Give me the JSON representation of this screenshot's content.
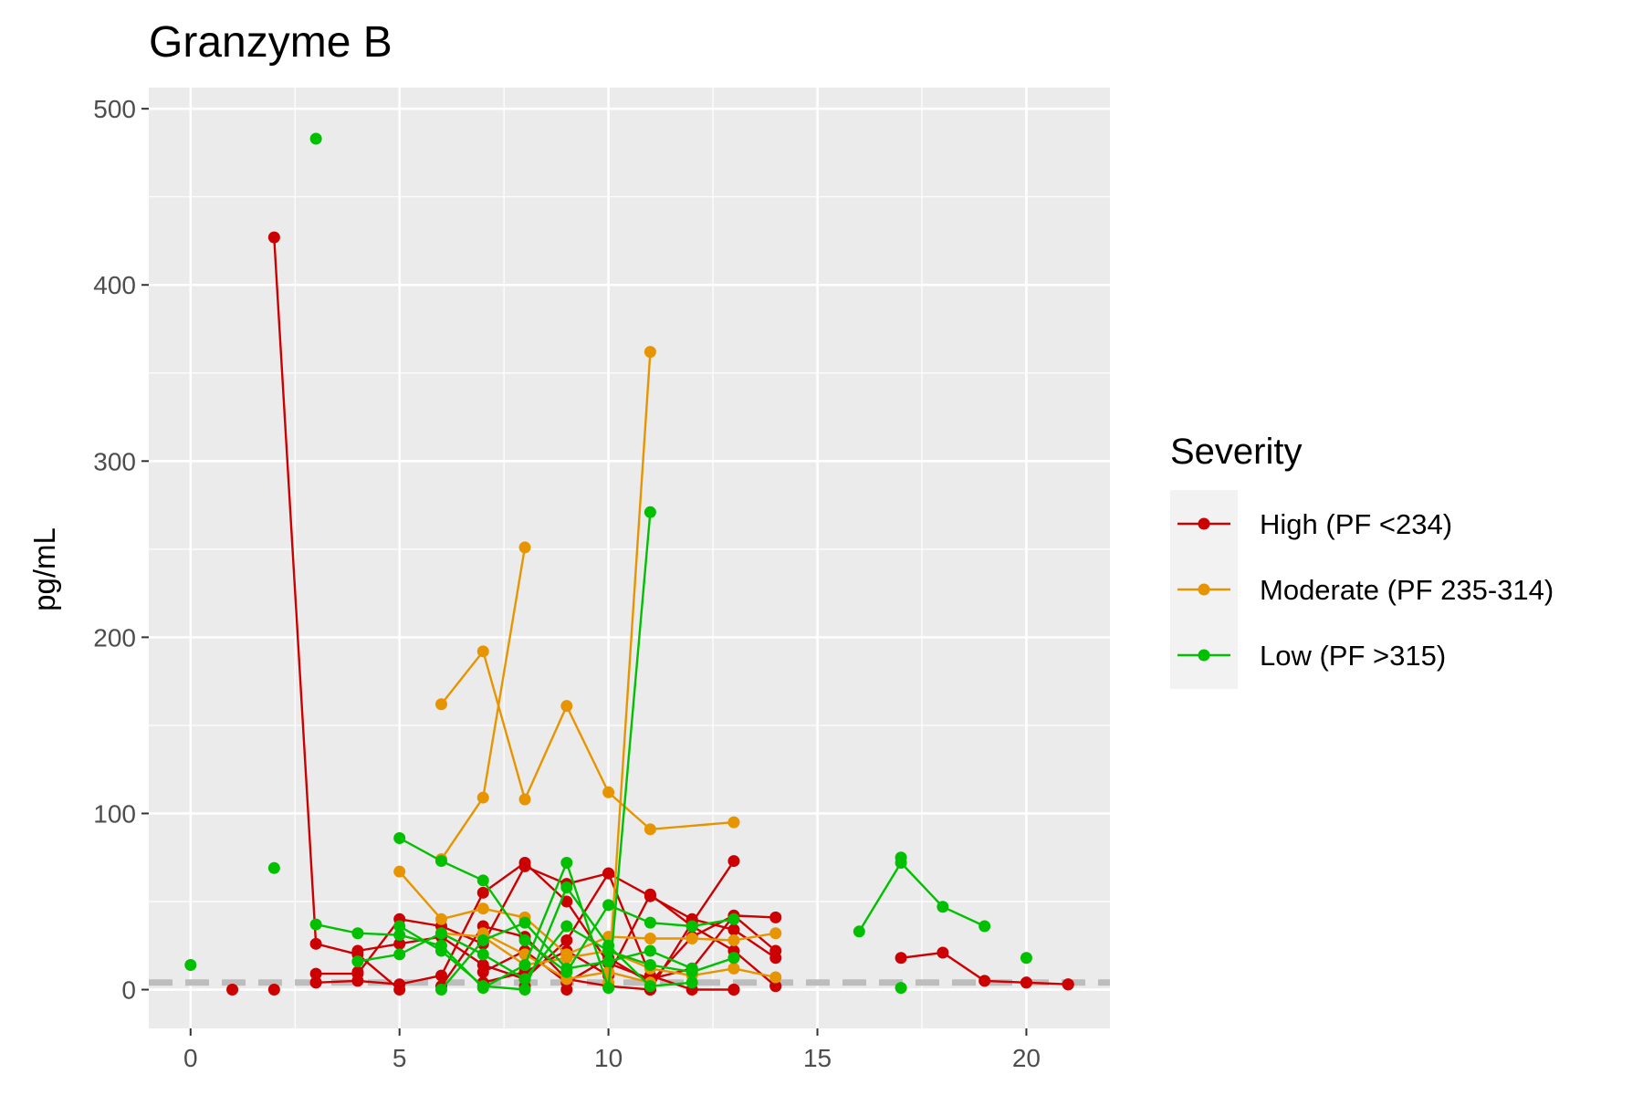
{
  "chart_data": {
    "type": "line",
    "title": "Granzyme B",
    "xlabel": "",
    "ylabel": "pg/mL",
    "xlim": [
      -1,
      22
    ],
    "ylim": [
      -22,
      512
    ],
    "x_ticks": [
      0,
      5,
      10,
      15,
      20
    ],
    "y_ticks": [
      0,
      100,
      200,
      300,
      400,
      500
    ],
    "grid": true,
    "reference_line": {
      "y": 4,
      "style": "dashed",
      "color": "#bdbdbd"
    },
    "legend": {
      "title": "Severity",
      "position": "right"
    },
    "series": [
      {
        "name": "High (PF <234)",
        "color": "#cc0000",
        "trajectories": [
          [
            [
              2,
              427
            ],
            [
              3,
              26
            ],
            [
              4,
              20
            ],
            [
              5,
              0
            ]
          ],
          [
            [
              3,
              9
            ],
            [
              4,
              9
            ],
            [
              5,
              40
            ],
            [
              6,
              36
            ],
            [
              7,
              26
            ],
            [
              8,
              70
            ],
            [
              9,
              60
            ],
            [
              10,
              66
            ],
            [
              11,
              53
            ],
            [
              12,
              40
            ],
            [
              13,
              34
            ],
            [
              14,
              18
            ]
          ],
          [
            [
              3,
              4
            ],
            [
              4,
              5
            ],
            [
              5,
              3
            ],
            [
              6,
              8
            ],
            [
              7,
              55
            ],
            [
              8,
              72
            ],
            [
              9,
              50
            ],
            [
              10,
              15
            ],
            [
              11,
              6
            ],
            [
              12,
              12
            ],
            [
              13,
              42
            ],
            [
              14,
              22
            ]
          ],
          [
            [
              4,
              22
            ],
            [
              5,
              26
            ],
            [
              6,
              30
            ],
            [
              7,
              14
            ],
            [
              8,
              6
            ],
            [
              9,
              28
            ],
            [
              10,
              66
            ],
            [
              11,
              8
            ],
            [
              12,
              0
            ],
            [
              13,
              0
            ]
          ],
          [
            [
              6,
              2
            ],
            [
              7,
              36
            ],
            [
              8,
              30
            ],
            [
              9,
              6
            ],
            [
              10,
              2
            ],
            [
              11,
              0
            ],
            [
              12,
              38
            ],
            [
              13,
              73
            ]
          ],
          [
            [
              7,
              4
            ],
            [
              8,
              10
            ],
            [
              9,
              22
            ],
            [
              10,
              8
            ],
            [
              11,
              54
            ],
            [
              12,
              36
            ],
            [
              13,
              22
            ],
            [
              14,
              2
            ]
          ],
          [
            [
              7,
              10
            ],
            [
              8,
              22
            ],
            [
              9,
              4
            ],
            [
              10,
              18
            ],
            [
              11,
              4
            ],
            [
              12,
              30
            ],
            [
              13,
              42
            ],
            [
              14,
              41
            ]
          ],
          [
            [
              17,
              18
            ],
            [
              18,
              21
            ],
            [
              19,
              5
            ],
            [
              20,
              4
            ],
            [
              21,
              3
            ]
          ]
        ],
        "points": [
          [
            1,
            0
          ],
          [
            2,
            0
          ],
          [
            3,
            4
          ],
          [
            4,
            10
          ],
          [
            8,
            2
          ],
          [
            9,
            0
          ],
          [
            11,
            0
          ],
          [
            13,
            0
          ],
          [
            14,
            2
          ],
          [
            20,
            4
          ],
          [
            21,
            3
          ]
        ]
      },
      {
        "name": "Moderate (PF 235-314)",
        "color": "#e69500",
        "trajectories": [
          [
            [
              6,
              162
            ],
            [
              7,
              192
            ],
            [
              8,
              108
            ],
            [
              9,
              161
            ],
            [
              10,
              112
            ],
            [
              11,
              91
            ],
            [
              13,
              95
            ]
          ],
          [
            [
              6,
              74
            ],
            [
              7,
              109
            ],
            [
              8,
              251
            ]
          ],
          [
            [
              5,
              67
            ],
            [
              6,
              40
            ],
            [
              7,
              46
            ],
            [
              8,
              41
            ],
            [
              9,
              20
            ],
            [
              10,
              30
            ],
            [
              11,
              29
            ],
            [
              12,
              29
            ],
            [
              13,
              28
            ],
            [
              14,
              32
            ]
          ],
          [
            [
              10,
              4
            ],
            [
              11,
              362
            ]
          ],
          [
            [
              6,
              32
            ],
            [
              7,
              30
            ],
            [
              8,
              14
            ],
            [
              9,
              18
            ],
            [
              10,
              22
            ],
            [
              11,
              12
            ],
            [
              12,
              8
            ],
            [
              13,
              12
            ],
            [
              14,
              7
            ]
          ],
          [
            [
              7,
              32
            ],
            [
              8,
              20
            ],
            [
              9,
              6
            ],
            [
              10,
              10
            ],
            [
              11,
              4
            ]
          ]
        ],
        "points": []
      },
      {
        "name": "Low (PF >315)",
        "color": "#00c000",
        "trajectories": [
          [
            [
              3,
              37
            ],
            [
              4,
              32
            ],
            [
              5,
              31
            ],
            [
              6,
              25
            ],
            [
              7,
              1
            ],
            [
              8,
              14
            ],
            [
              9,
              72
            ],
            [
              10,
              1
            ],
            [
              11,
              271
            ]
          ],
          [
            [
              5,
              86
            ],
            [
              6,
              73
            ],
            [
              7,
              62
            ],
            [
              8,
              28
            ],
            [
              9,
              10
            ],
            [
              10,
              48
            ],
            [
              11,
              38
            ],
            [
              12,
              36
            ],
            [
              13,
              40
            ]
          ],
          [
            [
              4,
              16
            ],
            [
              5,
              20
            ],
            [
              6,
              32
            ],
            [
              7,
              20
            ],
            [
              8,
              6
            ],
            [
              9,
              36
            ],
            [
              10,
              22
            ],
            [
              11,
              14
            ],
            [
              12,
              10
            ],
            [
              13,
              18
            ]
          ],
          [
            [
              5,
              36
            ],
            [
              6,
              22
            ],
            [
              7,
              2
            ],
            [
              8,
              0
            ],
            [
              9,
              58
            ],
            [
              10,
              25
            ],
            [
              11,
              2
            ],
            [
              12,
              4
            ]
          ],
          [
            [
              6,
              0
            ],
            [
              7,
              28
            ],
            [
              8,
              38
            ],
            [
              9,
              12
            ],
            [
              10,
              16
            ],
            [
              11,
              22
            ],
            [
              12,
              12
            ]
          ],
          [
            [
              16,
              33
            ],
            [
              17,
              72
            ],
            [
              18,
              47
            ],
            [
              19,
              36
            ]
          ]
        ],
        "points": [
          [
            0,
            14
          ],
          [
            2,
            69
          ],
          [
            3,
            483
          ],
          [
            17,
            1
          ],
          [
            17,
            75
          ],
          [
            20,
            18
          ],
          [
            13,
            18
          ]
        ]
      }
    ]
  }
}
